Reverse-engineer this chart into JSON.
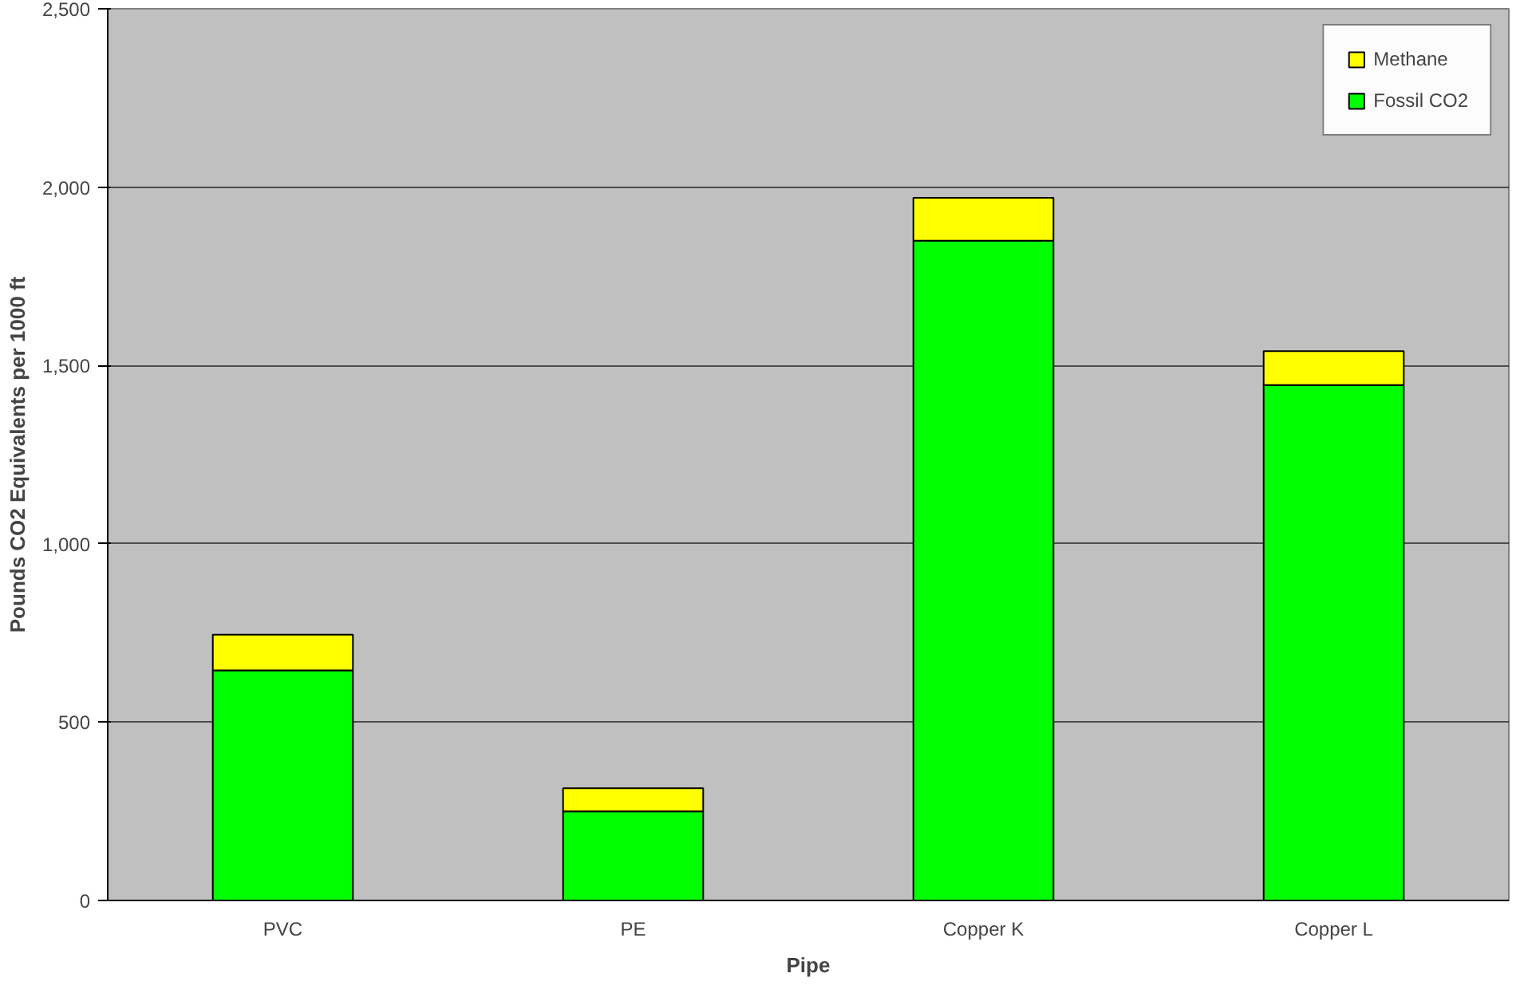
{
  "chart_data": {
    "type": "bar",
    "xlabel": "Pipe",
    "ylabel": "Pounds CO2 Equivalents per 1000 ft",
    "categories": [
      "PVC",
      "PE",
      "Copper K",
      "Copper L"
    ],
    "series": [
      {
        "name": "Fossil CO2",
        "color": "#00ff00",
        "values": [
          645,
          250,
          1850,
          1445
        ]
      },
      {
        "name": "Methane",
        "color": "#ffff00",
        "values": [
          100,
          65,
          120,
          95
        ]
      }
    ],
    "stacked": true,
    "ylim": [
      0,
      2500
    ],
    "yticks": [
      0,
      {
        "value": 500,
        "label": "500"
      },
      {
        "value": 1000,
        "label": "1,000"
      },
      {
        "value": 1500,
        "label": "1,500"
      },
      {
        "value": 2000,
        "label": "2,000"
      },
      {
        "value": 2500,
        "label": "2,500"
      }
    ],
    "grid": "y",
    "legend": "top right"
  }
}
